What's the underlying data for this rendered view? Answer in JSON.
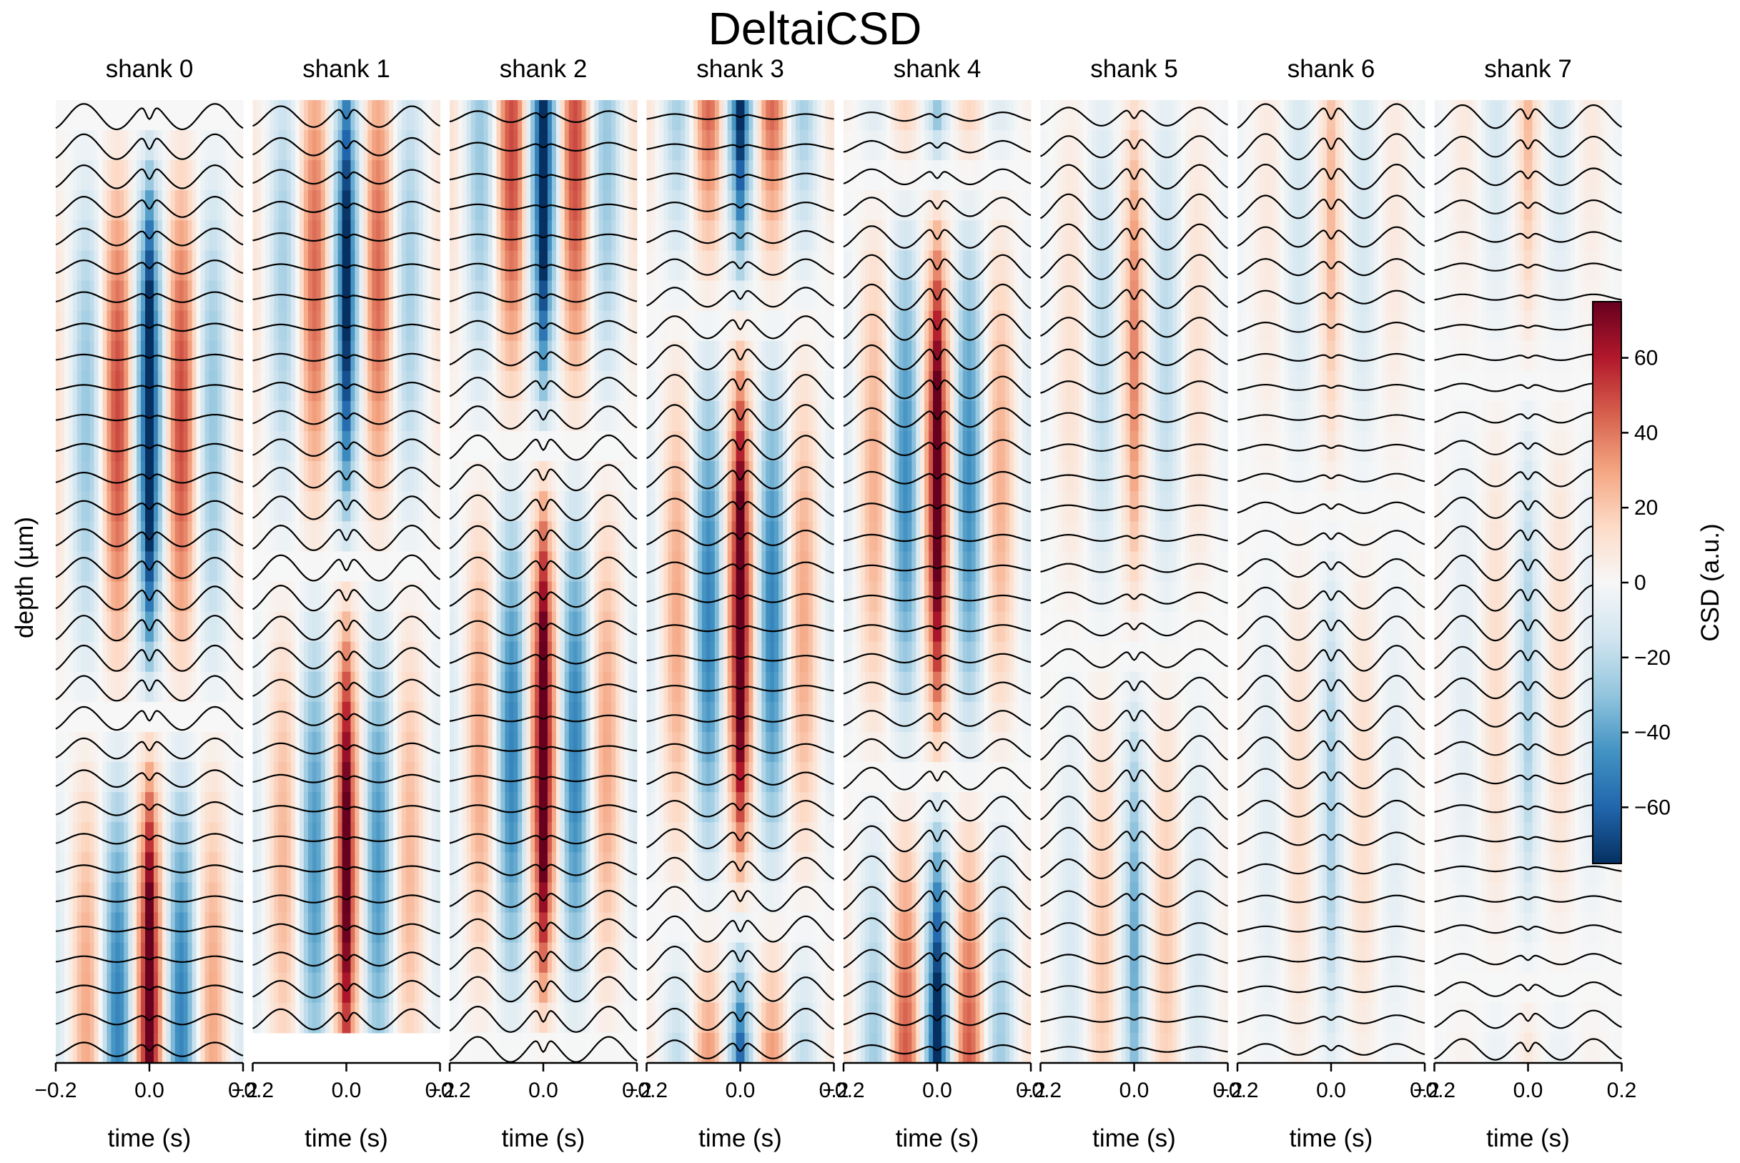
{
  "title": "DeltaiCSD",
  "chart_data": {
    "type": "heatmap",
    "title": "DeltaiCSD",
    "xlabel": "time (s)",
    "ylabel": "depth (µm)",
    "xlim": [
      -0.2,
      0.2
    ],
    "x_ticks": [
      -0.2,
      0.0,
      0.2
    ],
    "x_tick_labels": [
      "−0.2",
      "0.0",
      "0.2"
    ],
    "colormap": "RdBu_r",
    "colormap_colors": [
      "#053061",
      "#2166ac",
      "#4393c3",
      "#92c5de",
      "#d1e5f0",
      "#f7f7f7",
      "#fddbc7",
      "#f4a582",
      "#d6604d",
      "#b2182b",
      "#67001f"
    ],
    "clim": [
      -75,
      75
    ],
    "overlay": "LFP traces (black lines)",
    "trace_color": "#000000",
    "colorbar": {
      "label": "CSD (a.u.)",
      "ticks": [
        60,
        40,
        20,
        0,
        -20,
        -40,
        -60
      ],
      "tick_labels": [
        "60",
        "40",
        "20",
        "0",
        "−20",
        "−40",
        "−60"
      ],
      "range": [
        -75,
        75
      ]
    },
    "panels": [
      {
        "name": "shank 0",
        "channels": 32,
        "max_csd": 75
      },
      {
        "name": "shank 1",
        "channels": 31,
        "max_csd": 65
      },
      {
        "name": "shank 2",
        "channels": 32,
        "max_csd": 75
      },
      {
        "name": "shank 3",
        "channels": 32,
        "max_csd": 75
      },
      {
        "name": "shank 4",
        "channels": 32,
        "max_csd": 70
      },
      {
        "name": "shank 5",
        "channels": 32,
        "max_csd": 30
      },
      {
        "name": "shank 6",
        "channels": 32,
        "max_csd": 20
      },
      {
        "name": "shank 7",
        "channels": 32,
        "max_csd": 20
      }
    ]
  }
}
